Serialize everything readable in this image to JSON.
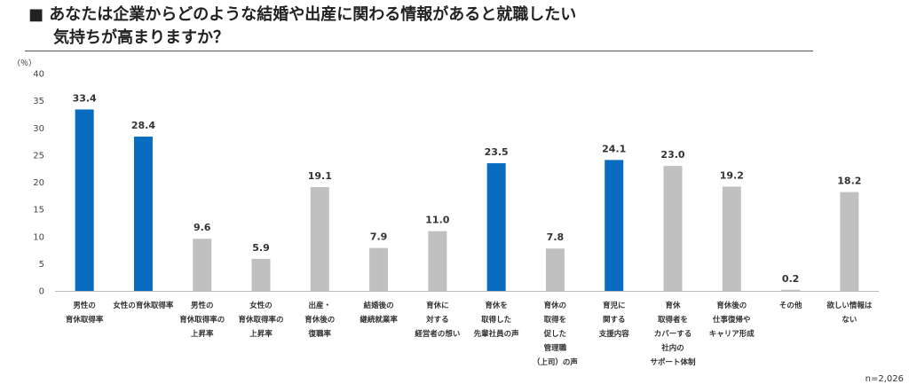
{
  "title_line1": "■ あなたは企業からどのような結婚や出産に関わる情報があると就職したい",
  "title_line2": "気持ちが高まりますか？",
  "unit_label": "（％）",
  "sample_note": "n=2,026",
  "colors": {
    "highlight": "#0a6cc0",
    "normal": "#c0c0c0",
    "axis": "#bbbbbb"
  },
  "chart_data": {
    "type": "bar",
    "title": "あなたは企業からどのような結婚や出産に関わる情報があると就職したい気持ちが高まりますか？",
    "ylabel": "（％）",
    "ylim": [
      0,
      40
    ],
    "yticks": [
      0,
      5,
      10,
      15,
      20,
      25,
      30,
      35,
      40
    ],
    "grid": false,
    "categories": [
      [
        "男性の",
        "育休取得率"
      ],
      [
        "女性の育休取得率"
      ],
      [
        "男性の",
        "育休取得率の",
        "上昇率"
      ],
      [
        "女性の",
        "育休取得率の",
        "上昇率"
      ],
      [
        "出産・",
        "育休後の",
        "復職率"
      ],
      [
        "結婚後の",
        "継続就業率"
      ],
      [
        "育休に",
        "対する",
        "経営者の想い"
      ],
      [
        "育休を",
        "取得した",
        "先輩社員の声"
      ],
      [
        "育休の",
        "取得を",
        "促した",
        "管理職",
        "（上司）の声"
      ],
      [
        "育児に",
        "関する",
        "支援内容"
      ],
      [
        "育休",
        "取得者を",
        "カバーする",
        "社内の",
        "サポート体制"
      ],
      [
        "育休後の",
        "仕事復帰や",
        "キャリア形成"
      ],
      [
        "その他"
      ],
      [
        "欲しい情報は",
        "ない"
      ]
    ],
    "values": [
      33.4,
      28.4,
      9.6,
      5.9,
      19.1,
      7.9,
      11.0,
      23.5,
      7.8,
      24.1,
      23.0,
      19.2,
      0.2,
      18.2
    ],
    "value_labels": [
      "33.4",
      "28.4",
      "9.6",
      "5.9",
      "19.1",
      "7.9",
      "11.0",
      "23.5",
      "7.8",
      "24.1",
      "23.0",
      "19.2",
      "0.2",
      "18.2"
    ],
    "highlighted": [
      true,
      true,
      false,
      false,
      false,
      false,
      false,
      true,
      false,
      true,
      false,
      false,
      false,
      false
    ]
  }
}
